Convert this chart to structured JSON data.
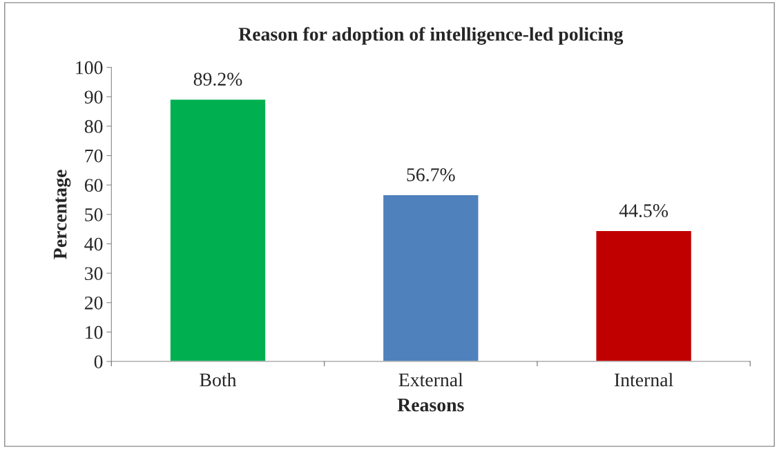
{
  "chart_data": {
    "type": "bar",
    "title": "Reason for adoption of intelligence-led policing",
    "xlabel": "Reasons",
    "ylabel": "Percentage",
    "categories": [
      "Both",
      "External",
      "Internal"
    ],
    "values": [
      89.2,
      56.7,
      44.5
    ],
    "colors": [
      "#00b050",
      "#4f81bd",
      "#c00000"
    ],
    "value_labels": [
      "89.2%",
      "56.7%",
      "44.5%"
    ],
    "ylim": [
      0,
      100
    ],
    "yticks": [
      0,
      10,
      20,
      30,
      40,
      50,
      60,
      70,
      80,
      90,
      100
    ],
    "grid": false,
    "legend": false
  }
}
